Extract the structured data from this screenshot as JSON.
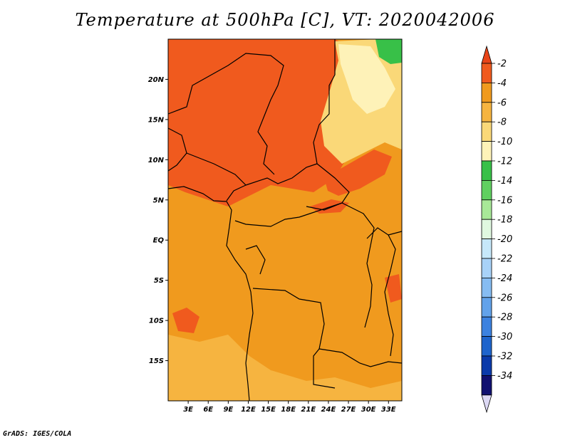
{
  "chart_data": {
    "type": "heatmap",
    "title": "Temperature at 500hPa [C], VT: 2020042006",
    "variable": "Temperature at 500hPa",
    "units": "C",
    "valid_time": "2020042006",
    "xlabel": "",
    "ylabel": "",
    "lon_range": [
      0,
      35
    ],
    "lat_range": [
      -20,
      25
    ],
    "x_ticks": [
      "3E",
      "6E",
      "9E",
      "12E",
      "15E",
      "18E",
      "21E",
      "24E",
      "27E",
      "30E",
      "33E"
    ],
    "x_tick_values": [
      3,
      6,
      9,
      12,
      15,
      18,
      21,
      24,
      27,
      30,
      33
    ],
    "y_ticks": [
      "20N",
      "15N",
      "10N",
      "5N",
      "EQ",
      "5S",
      "10S",
      "15S"
    ],
    "y_tick_values": [
      20,
      15,
      10,
      5,
      0,
      -5,
      -10,
      -15
    ],
    "colorbar": {
      "labels": [
        "-2",
        "-4",
        "-6",
        "-8",
        "-10",
        "-12",
        "-14",
        "-16",
        "-18",
        "-20",
        "-22",
        "-24",
        "-26",
        "-28",
        "-30",
        "-32",
        "-34"
      ],
      "levels": [
        -2,
        -4,
        -6,
        -8,
        -10,
        -12,
        -14,
        -16,
        -18,
        -20,
        -22,
        -24,
        -26,
        -28,
        -30,
        -32,
        -34
      ],
      "colors": [
        "#f05a1e",
        "#f09a1e",
        "#f6b440",
        "#fad878",
        "#fef2b8",
        "#38c048",
        "#60d060",
        "#a8e898",
        "#e0f8e0",
        "#c6e8fa",
        "#a8d2f8",
        "#86bcf2",
        "#62a2ea",
        "#3c82e0",
        "#1e64cc",
        "#0a3aaa",
        "#101070"
      ],
      "top_color": "#e84418",
      "bottom_color": "#dcd8f4"
    },
    "regions": [
      {
        "name": "background",
        "value": -5
      },
      {
        "name": "north-warm-band",
        "value": -3
      },
      {
        "name": "sahara-warm-patch",
        "value": -2
      },
      {
        "name": "central-warm-patch",
        "value": -3
      },
      {
        "name": "sudan-warm-patch",
        "value": -3
      },
      {
        "name": "southwest-warm-patch",
        "value": -3
      },
      {
        "name": "southern-cool-band",
        "value": -7
      },
      {
        "name": "northeast-cool-region",
        "value": -9
      },
      {
        "name": "northeast-cold-core",
        "value": -10
      },
      {
        "name": "northeast-green-patch",
        "value": -12
      }
    ]
  },
  "credit": "GrADS: IGES/COLA"
}
